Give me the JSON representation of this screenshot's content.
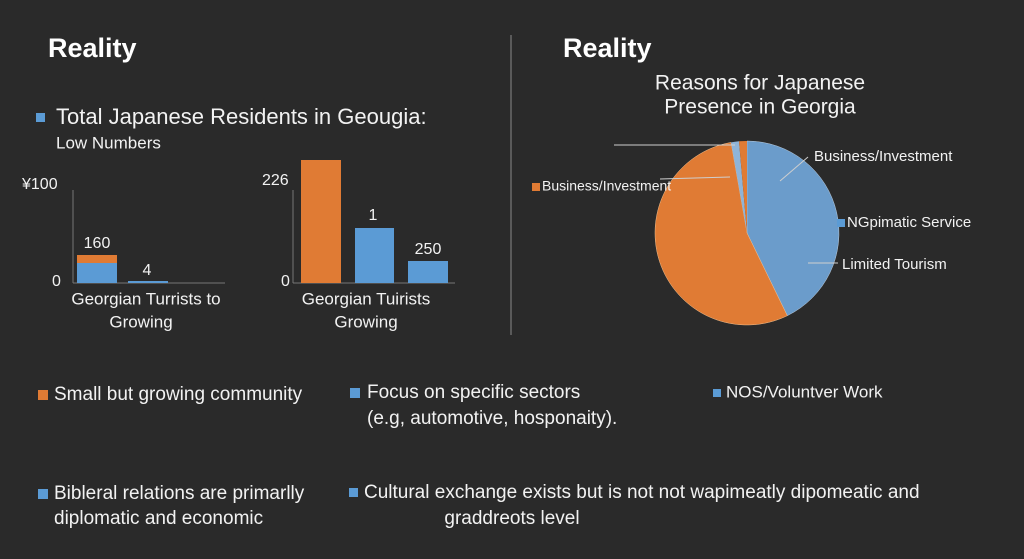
{
  "left": {
    "heading": "Reality",
    "bullet": "Total Japanese Residents in Geougia:",
    "subtext": "Low Numbers",
    "chart_1": {
      "top_label": "¥100",
      "zero_label": "0",
      "bar_labels": [
        "160",
        "4"
      ],
      "caption": [
        "Georgian Turrists to",
        "Growing"
      ]
    },
    "chart_2": {
      "top_label": "226",
      "zero_label": "0",
      "bar_labels": [
        "1",
        "250"
      ],
      "caption": [
        "Georgian Tuirists",
        "Growing"
      ]
    }
  },
  "right": {
    "heading": "Reality",
    "chart_title": [
      "Reasons for Japanese",
      "Presence in Georgia"
    ],
    "pie_labels": [
      "Business/Investment",
      "Business/Investment",
      "NGpimatic Service",
      "Limited Tourism"
    ]
  },
  "bullets": [
    {
      "lines": [
        "Small but growing community"
      ]
    },
    {
      "lines": [
        "Focus on specific sectors",
        "(e.g, automotive, hosponaity)."
      ]
    },
    {
      "lines": [
        "NOS/Voluntver Work"
      ]
    },
    {
      "lines": [
        "Bibleral relations are primarlly",
        "diplomatic and economic"
      ]
    },
    {
      "lines": [
        "Cultural exchange exists but is not not wapimeatly dipomeatic and",
        "graddreots level"
      ]
    }
  ]
}
